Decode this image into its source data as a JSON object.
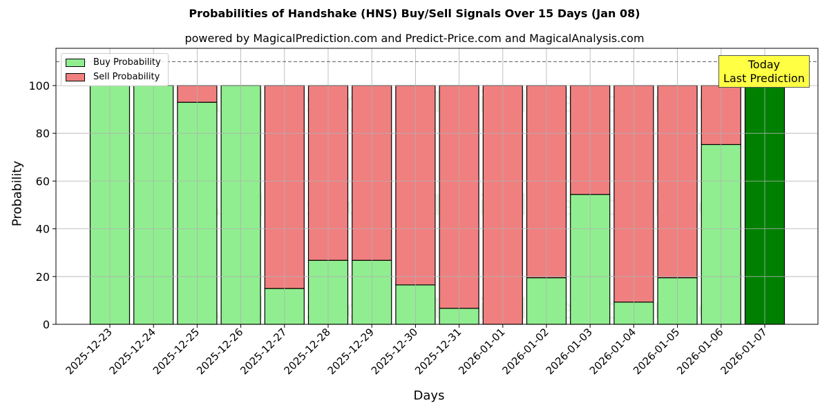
{
  "header": {
    "title": "Probabilities of Handshake (HNS) Buy/Sell Signals Over 15 Days (Jan 08)",
    "subtitle": "powered by MagicalPrediction.com and Predict-Price.com and MagicalAnalysis.com"
  },
  "legend": {
    "buy_label": "Buy Probability",
    "sell_label": "Sell Probability"
  },
  "annotation": {
    "line1": "Today",
    "line2": "Last Prediction"
  },
  "watermarks": [
    "MagicalAnalysis.com",
    "MagicalPrediction.com"
  ],
  "colors": {
    "buy": "#90ee90",
    "sell": "#f08080",
    "today": "#008000",
    "annotation_bg": "#ffff44",
    "grid": "#b0b0b0"
  },
  "chart_data": {
    "type": "bar",
    "stacked": true,
    "title": "Probabilities of Handshake (HNS) Buy/Sell Signals Over 15 Days (Jan 08)",
    "subtitle": "powered by MagicalPrediction.com and Predict-Price.com and MagicalAnalysis.com",
    "xlabel": "Days",
    "ylabel": "Probability",
    "ylim": [
      0,
      115
    ],
    "yticks": [
      0,
      20,
      40,
      60,
      80,
      100
    ],
    "grid": true,
    "legend_position": "upper left",
    "reference_line": {
      "y": 110,
      "style": "dashed"
    },
    "categories": [
      "2025-12-23",
      "2025-12-24",
      "2025-12-25",
      "2025-12-26",
      "2025-12-27",
      "2025-12-28",
      "2025-12-29",
      "2025-12-30",
      "2025-12-31",
      "2026-01-01",
      "2026-01-02",
      "2026-01-03",
      "2026-01-04",
      "2026-01-05",
      "2026-01-06",
      "2026-01-07"
    ],
    "series": [
      {
        "name": "Buy Probability",
        "values": [
          100,
          100,
          93,
          100,
          15,
          26.8,
          26.8,
          16.5,
          6.7,
          0,
          19.5,
          54.4,
          9.3,
          19.5,
          75.3,
          100
        ]
      },
      {
        "name": "Sell Probability",
        "values": [
          0,
          0,
          7,
          0,
          85,
          73.2,
          73.2,
          83.5,
          93.3,
          100,
          80.5,
          45.6,
          90.7,
          80.5,
          24.7,
          0
        ]
      }
    ],
    "annotations": [
      {
        "text": "Today\nLast Prediction",
        "x": "2026-01-07"
      }
    ],
    "highlight": {
      "category": "2026-01-07",
      "color": "#008000"
    }
  },
  "axes": {
    "xlabel": "Days",
    "ylabel": "Probability"
  }
}
